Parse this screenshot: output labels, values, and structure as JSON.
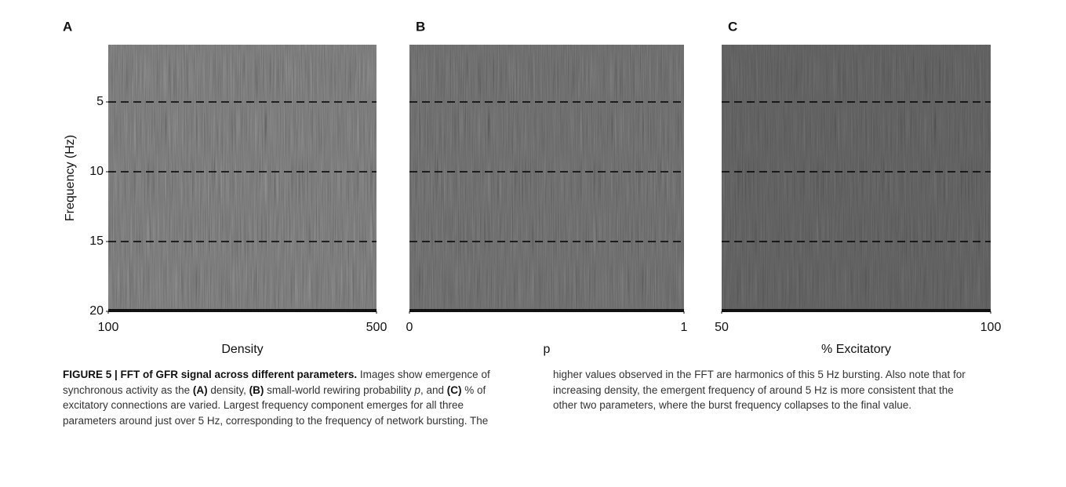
{
  "chart_data": [
    {
      "type": "heatmap",
      "panel_label": "A",
      "xlabel": "Density",
      "ylabel": "Frequency (Hz)",
      "xlim": [
        100,
        500
      ],
      "xticks": [
        100,
        500
      ],
      "ylim": [
        20,
        0.9
      ],
      "yticks": [
        5,
        10,
        15,
        20
      ],
      "hlines": [
        5,
        10,
        15
      ],
      "shade": 0.55
    },
    {
      "type": "heatmap",
      "panel_label": "B",
      "xlabel": "p",
      "xlim": [
        0,
        1
      ],
      "xticks": [
        0,
        1
      ],
      "ylim": [
        20,
        0.9
      ],
      "hlines": [
        5,
        10,
        15
      ],
      "shade": 0.45
    },
    {
      "type": "heatmap",
      "panel_label": "C",
      "xlabel": "% Excitatory",
      "xlim": [
        50,
        100
      ],
      "xticks": [
        50,
        100
      ],
      "ylim": [
        20,
        0.9
      ],
      "hlines": [
        5,
        10,
        15
      ],
      "shade": 0.35
    }
  ],
  "caption": {
    "runs": [
      {
        "text": "FIGURE 5 | FFT of GFR signal across different parameters.",
        "bold": true
      },
      {
        "text": " Images show emergence of synchronous activity as the "
      },
      {
        "text": "(A)",
        "bold": true
      },
      {
        "text": " density, "
      },
      {
        "text": "(B)",
        "bold": true
      },
      {
        "text": " small-world rewiring probability "
      },
      {
        "text": "p",
        "italic": true
      },
      {
        "text": ", and "
      },
      {
        "text": "(C)",
        "bold": true
      },
      {
        "text": " % of excitatory connections are varied. Largest frequency component emerges for all three parameters around just over 5 Hz, corresponding to the frequency of network bursting. The higher values observed in the FFT are harmonics of this 5 Hz bursting. Also note that for increasing density, the emergent frequency of around 5 Hz is more consistent that the other two parameters, where the burst frequency collapses to the final value."
      }
    ]
  }
}
